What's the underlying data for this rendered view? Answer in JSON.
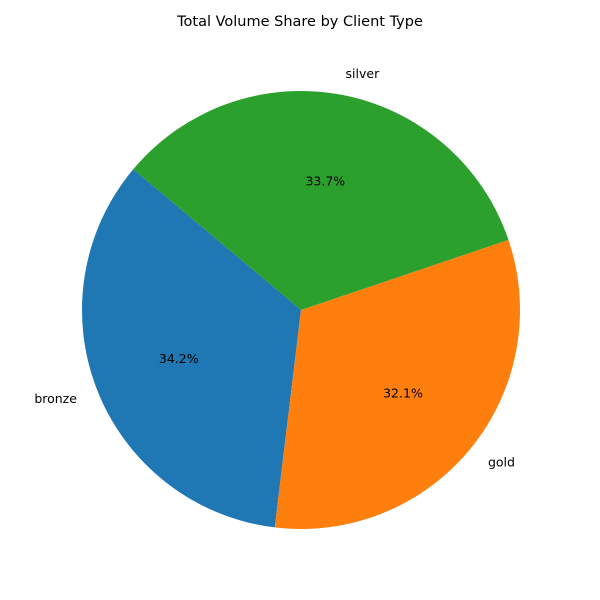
{
  "chart_data": {
    "type": "pie",
    "title": "Total Volume Share by Client Type",
    "start_angle_deg": 140,
    "direction": "counterclockwise",
    "slices": [
      {
        "label": "bronze",
        "value": 34.2,
        "pct_label": "34.2%",
        "color": "#1f77b4"
      },
      {
        "label": "gold",
        "value": 32.1,
        "pct_label": "32.1%",
        "color": "#ff7f0e"
      },
      {
        "label": "silver",
        "value": 33.7,
        "pct_label": "33.7%",
        "color": "#2ca02c"
      }
    ]
  }
}
